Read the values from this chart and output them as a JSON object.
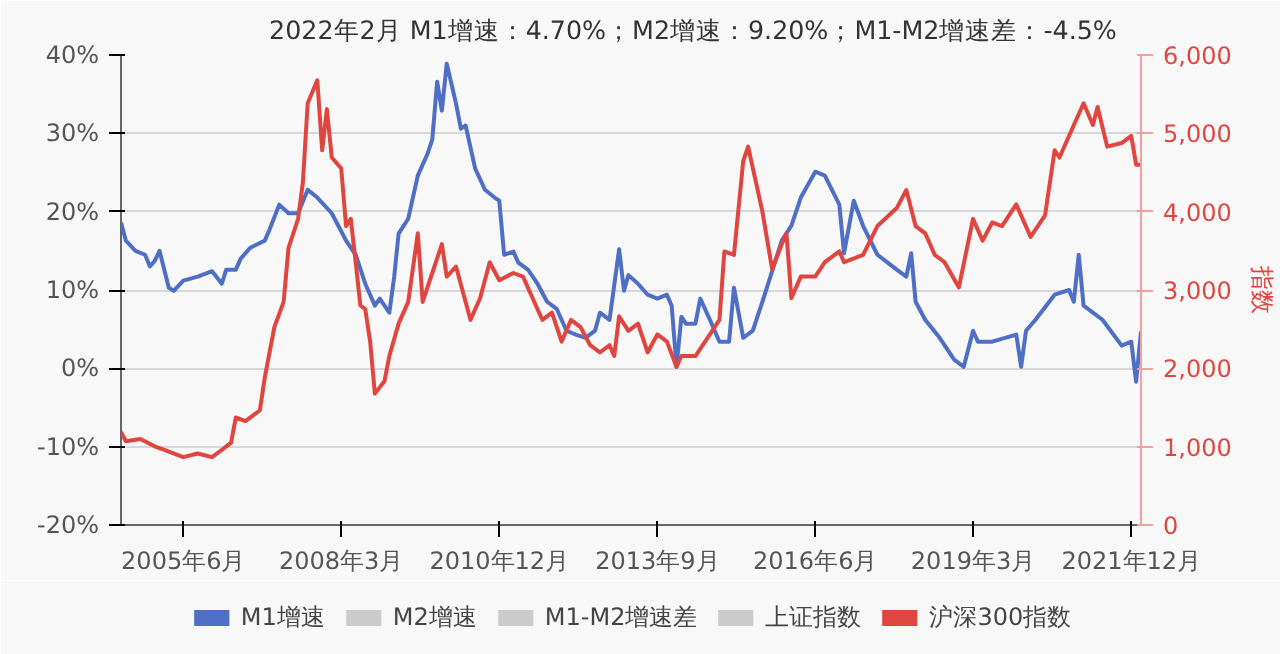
{
  "chart_data": {
    "type": "line",
    "title": "2022年2月    M1增速：4.70%；M2增速：9.20%；M1-M2增速差：-4.5%",
    "y2label": "指数",
    "xlim": [
      "2004-05",
      "2022-02"
    ],
    "xticks": [
      {
        "value": "2005-06",
        "label": "2005年6月"
      },
      {
        "value": "2008-03",
        "label": "2008年3月"
      },
      {
        "value": "2010-12",
        "label": "2010年12月"
      },
      {
        "value": "2013-09",
        "label": "2013年9月"
      },
      {
        "value": "2016-06",
        "label": "2016年6月"
      },
      {
        "value": "2019-03",
        "label": "2019年3月"
      },
      {
        "value": "2021-12",
        "label": "2021年12月"
      }
    ],
    "ylim": [
      -20,
      40
    ],
    "yticks": [
      {
        "value": -20,
        "label": "-20%"
      },
      {
        "value": -10,
        "label": "-10%"
      },
      {
        "value": 0,
        "label": "0%"
      },
      {
        "value": 10,
        "label": "10%"
      },
      {
        "value": 20,
        "label": "20%"
      },
      {
        "value": 30,
        "label": "30%"
      },
      {
        "value": 40,
        "label": "40%"
      }
    ],
    "y2lim": [
      0,
      6000
    ],
    "y2ticks": [
      0,
      {
        "value": 1000,
        "label": "1,000"
      },
      {
        "value": 2000,
        "label": "2,000"
      },
      {
        "value": 3000,
        "label": "3,000"
      },
      {
        "value": 4000,
        "label": "4,000"
      },
      {
        "value": 5000,
        "label": "5,000"
      },
      {
        "value": 6000,
        "label": "6,000"
      }
    ],
    "grid": "y",
    "legend": "bottom",
    "line_style": "solid",
    "series": [
      {
        "name": "M1增速",
        "color": "#4f6fc6",
        "x": [
          "2004-05",
          "2004-06",
          "2004-08",
          "2004-10",
          "2004-11",
          "2004-12",
          "2005-01",
          "2005-03",
          "2005-04",
          "2005-06",
          "2005-09",
          "2005-12",
          "2006-02",
          "2006-03",
          "2006-05",
          "2006-06",
          "2006-08",
          "2006-11",
          "2006-12",
          "2007-02",
          "2007-04",
          "2007-06",
          "2007-08",
          "2007-10",
          "2008-01",
          "2008-04",
          "2008-06",
          "2008-08",
          "2008-10",
          "2008-11",
          "2009-01",
          "2009-02",
          "2009-03",
          "2009-05",
          "2009-07",
          "2009-09",
          "2009-10",
          "2009-11",
          "2009-12",
          "2010-01",
          "2010-03",
          "2010-04",
          "2010-05",
          "2010-07",
          "2010-09",
          "2010-11",
          "2010-12",
          "2011-01",
          "2011-03",
          "2011-04",
          "2011-06",
          "2011-08",
          "2011-10",
          "2011-12",
          "2012-01",
          "2012-02",
          "2012-04",
          "2012-06",
          "2012-08",
          "2012-09",
          "2012-11",
          "2013-01",
          "2013-02",
          "2013-03",
          "2013-05",
          "2013-07",
          "2013-09",
          "2013-11",
          "2013-12",
          "2014-01",
          "2014-02",
          "2014-03",
          "2014-05",
          "2014-06",
          "2014-08",
          "2014-10",
          "2014-12",
          "2015-01",
          "2015-03",
          "2015-05",
          "2015-07",
          "2015-11",
          "2016-01",
          "2016-03",
          "2016-06",
          "2016-08",
          "2016-11",
          "2016-12",
          "2017-02",
          "2017-04",
          "2017-07",
          "2017-11",
          "2018-01",
          "2018-02",
          "2018-03",
          "2018-05",
          "2018-08",
          "2018-11",
          "2019-01",
          "2019-03",
          "2019-04",
          "2019-07",
          "2019-12",
          "2020-01",
          "2020-02",
          "2020-04",
          "2020-08",
          "2020-11",
          "2020-12",
          "2021-01",
          "2021-02",
          "2021-06",
          "2021-10",
          "2021-12",
          "2022-01",
          "2022-02"
        ],
        "values": [
          18.6,
          16.3,
          15,
          14.5,
          13,
          13.7,
          15,
          10.3,
          9.9,
          11.2,
          11.7,
          12.4,
          10.8,
          12.6,
          12.6,
          14,
          15.4,
          16.3,
          17.7,
          20.9,
          19.8,
          19.8,
          22.8,
          21.8,
          19.8,
          16.3,
          14.5,
          10.8,
          8,
          8.9,
          7.1,
          11.7,
          17.2,
          19.1,
          24.6,
          27.4,
          29.2,
          36.6,
          32.9,
          38.9,
          33.8,
          30.6,
          31,
          25.5,
          22.8,
          21.8,
          21.4,
          14.5,
          14.9,
          13.5,
          12.6,
          10.8,
          8.5,
          7.6,
          6.2,
          4.8,
          4.3,
          3.9,
          4.8,
          7.1,
          6.2,
          15.2,
          9.9,
          11.9,
          10.8,
          9.4,
          8.9,
          9.4,
          8,
          0.2,
          6.6,
          5.7,
          5.7,
          8.9,
          6.2,
          3.4,
          3.4,
          10.3,
          3.9,
          4.8,
          8.5,
          16.3,
          18.2,
          21.8,
          25.1,
          24.6,
          20.9,
          14.7,
          21.4,
          18.2,
          14.5,
          12.6,
          11.7,
          14.7,
          8.5,
          6.2,
          3.9,
          1.1,
          0.2,
          4.8,
          3.4,
          3.4,
          4.3,
          0.2,
          4.8,
          6.2,
          9.4,
          10,
          8.5,
          14.5,
          8,
          6.2,
          2.9,
          3.4,
          -1.7,
          4.7
        ]
      },
      {
        "name": "M2增速",
        "color": "#cccccc"
      },
      {
        "name": "M1-M2增速差",
        "color": "#cccccc"
      },
      {
        "name": "上证指数",
        "color": "#cccccc",
        "axis": "y2"
      },
      {
        "name": "沪深300指数",
        "color": "#e04540",
        "axis": "y2",
        "x": [
          "2004-05",
          "2004-06",
          "2004-09",
          "2004-12",
          "2005-02",
          "2005-06",
          "2005-09",
          "2005-12",
          "2006-02",
          "2006-04",
          "2006-05",
          "2006-07",
          "2006-10",
          "2006-11",
          "2007-01",
          "2007-03",
          "2007-04",
          "2007-06",
          "2007-07",
          "2007-08",
          "2007-10",
          "2007-11",
          "2007-12",
          "2008-01",
          "2008-03",
          "2008-04",
          "2008-05",
          "2008-06",
          "2008-07",
          "2008-08",
          "2008-09",
          "2008-10",
          "2008-12",
          "2009-01",
          "2009-03",
          "2009-05",
          "2009-07",
          "2009-08",
          "2009-10",
          "2009-12",
          "2010-01",
          "2010-03",
          "2010-06",
          "2010-08",
          "2010-10",
          "2010-12",
          "2011-03",
          "2011-05",
          "2011-07",
          "2011-09",
          "2011-11",
          "2012-01",
          "2012-03",
          "2012-05",
          "2012-07",
          "2012-09",
          "2012-11",
          "2012-12",
          "2013-01",
          "2013-03",
          "2013-05",
          "2013-07",
          "2013-09",
          "2013-11",
          "2014-01",
          "2014-02",
          "2014-05",
          "2014-08",
          "2014-10",
          "2014-11",
          "2015-01",
          "2015-03",
          "2015-04",
          "2015-07",
          "2015-09",
          "2015-11",
          "2015-12",
          "2016-01",
          "2016-03",
          "2016-06",
          "2016-08",
          "2016-11",
          "2016-12",
          "2017-04",
          "2017-07",
          "2017-11",
          "2018-01",
          "2018-03",
          "2018-05",
          "2018-07",
          "2018-09",
          "2018-12",
          "2019-03",
          "2019-05",
          "2019-07",
          "2019-09",
          "2019-12",
          "2020-03",
          "2020-06",
          "2020-08",
          "2020-09",
          "2020-12",
          "2021-02",
          "2021-04",
          "2021-05",
          "2021-07",
          "2021-10",
          "2021-12",
          "2022-01",
          "2022-02"
        ],
        "values": [
          1189,
          1069,
          1097,
          1005,
          958,
          866,
          912,
          866,
          958,
          1051,
          1373,
          1327,
          1465,
          1880,
          2525,
          2848,
          3539,
          3908,
          4369,
          5383,
          5678,
          4784,
          5309,
          4691,
          4553,
          3816,
          3908,
          3355,
          2802,
          2756,
          2341,
          1677,
          1834,
          2157,
          2571,
          2848,
          3724,
          2848,
          3217,
          3585,
          3171,
          3299,
          2618,
          2894,
          3355,
          3124,
          3217,
          3171,
          2894,
          2618,
          2710,
          2341,
          2618,
          2525,
          2295,
          2203,
          2295,
          2157,
          2664,
          2479,
          2571,
          2203,
          2433,
          2341,
          2018,
          2157,
          2157,
          2433,
          2618,
          3493,
          3447,
          4645,
          4830,
          4000,
          3263,
          3585,
          3724,
          2894,
          3171,
          3171,
          3355,
          3493,
          3355,
          3447,
          3816,
          4046,
          4277,
          3816,
          3724,
          3447,
          3355,
          3032,
          3908,
          3631,
          3862,
          3816,
          4092,
          3678,
          3954,
          4784,
          4691,
          5106,
          5383,
          5106,
          5336,
          4830,
          4876,
          4968,
          4600,
          4600
        ]
      }
    ]
  }
}
